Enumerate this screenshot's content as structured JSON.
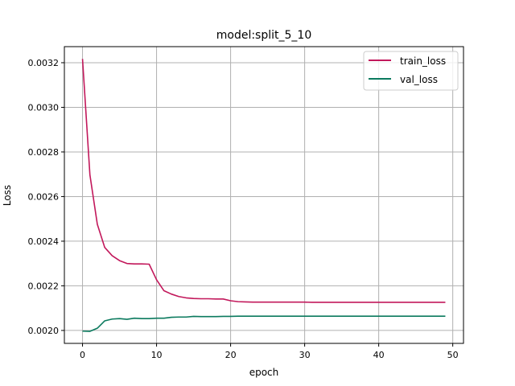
{
  "chart_data": {
    "type": "line",
    "title": "model:split_5_10",
    "xlabel": "epoch",
    "ylabel": "Loss",
    "xlim": [
      -2.45,
      51.45
    ],
    "ylim": [
      0.001942,
      0.003272
    ],
    "grid": true,
    "legend_position": "top-right",
    "x_ticks": [
      0,
      10,
      20,
      30,
      40,
      50
    ],
    "x_tick_labels": [
      "0",
      "10",
      "20",
      "30",
      "40",
      "50"
    ],
    "y_ticks": [
      0.002,
      0.0022,
      0.0024,
      0.0026,
      0.0028,
      0.003,
      0.0032
    ],
    "y_tick_labels": [
      "0.0020",
      "0.0022",
      "0.0024",
      "0.0026",
      "0.0028",
      "0.0030",
      "0.0032"
    ],
    "x": [
      0,
      1,
      2,
      3,
      4,
      5,
      6,
      7,
      8,
      9,
      10,
      11,
      12,
      13,
      14,
      15,
      16,
      17,
      18,
      19,
      20,
      21,
      22,
      23,
      24,
      25,
      26,
      27,
      28,
      29,
      30,
      31,
      32,
      33,
      34,
      35,
      36,
      37,
      38,
      39,
      40,
      41,
      42,
      43,
      44,
      45,
      46,
      47,
      48,
      49
    ],
    "series": [
      {
        "name": "train_loss",
        "color": "#c2185b",
        "values": [
          0.003217,
          0.002697,
          0.002476,
          0.002372,
          0.002335,
          0.002313,
          0.0023,
          0.002298,
          0.002298,
          0.002297,
          0.002227,
          0.002178,
          0.002163,
          0.002152,
          0.002146,
          0.002143,
          0.002142,
          0.002142,
          0.002141,
          0.002141,
          0.002133,
          0.002129,
          0.002128,
          0.002127,
          0.002127,
          0.002127,
          0.002127,
          0.002127,
          0.002127,
          0.002127,
          0.002127,
          0.002126,
          0.002126,
          0.002126,
          0.002126,
          0.002126,
          0.002126,
          0.002126,
          0.002126,
          0.002126,
          0.002126,
          0.002126,
          0.002126,
          0.002126,
          0.002126,
          0.002126,
          0.002126,
          0.002126,
          0.002126,
          0.002126
        ]
      },
      {
        "name": "val_loss",
        "color": "#0b7a5e",
        "values": [
          0.001997,
          0.001996,
          0.00201,
          0.002043,
          0.002051,
          0.002053,
          0.00205,
          0.002055,
          0.002053,
          0.002053,
          0.002055,
          0.002055,
          0.002059,
          0.00206,
          0.00206,
          0.002063,
          0.002062,
          0.002062,
          0.002062,
          0.002063,
          0.002063,
          0.002064,
          0.002064,
          0.002064,
          0.002064,
          0.002064,
          0.002064,
          0.002064,
          0.002064,
          0.002064,
          0.002064,
          0.002064,
          0.002064,
          0.002064,
          0.002064,
          0.002064,
          0.002064,
          0.002064,
          0.002064,
          0.002064,
          0.002064,
          0.002064,
          0.002064,
          0.002064,
          0.002064,
          0.002064,
          0.002064,
          0.002064,
          0.002064,
          0.002064
        ]
      }
    ]
  }
}
